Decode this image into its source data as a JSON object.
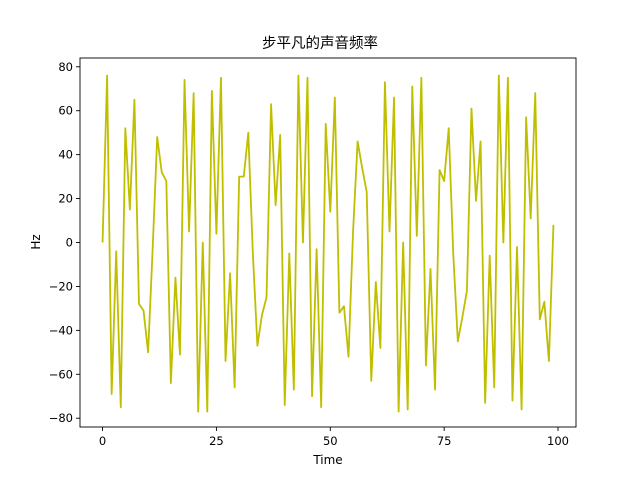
{
  "chart_data": {
    "type": "line",
    "title": "步平凡的声音频率",
    "xlabel": "Time",
    "ylabel": "Hz",
    "xlim": [
      -4.95,
      103.95
    ],
    "ylim": [
      -84,
      84
    ],
    "xticks": [
      0,
      25,
      50,
      75,
      100
    ],
    "yticks": [
      -80,
      -60,
      -40,
      -20,
      0,
      20,
      40,
      60,
      80
    ],
    "grid": false,
    "legend": "none",
    "colors": {
      "line": "#bfbf00",
      "axes": "#000000",
      "background": "#ffffff"
    },
    "series": [
      {
        "x": [
          0,
          1,
          2,
          3,
          4,
          5,
          6,
          7,
          8,
          9,
          10,
          11,
          12,
          13,
          14,
          15,
          16,
          17,
          18,
          19,
          20,
          21,
          22,
          23,
          24,
          25,
          26,
          27,
          28,
          29,
          30,
          31,
          32,
          33,
          34,
          35,
          36,
          37,
          38,
          39,
          40,
          41,
          42,
          43,
          44,
          45,
          46,
          47,
          48,
          49,
          50,
          51,
          52,
          53,
          54,
          55,
          56,
          57,
          58,
          59,
          60,
          61,
          62,
          63,
          64,
          65,
          66,
          67,
          68,
          69,
          70,
          71,
          72,
          73,
          74,
          75,
          76,
          77,
          78,
          79,
          80,
          81,
          82,
          83,
          84,
          85,
          86,
          87,
          88,
          89,
          90,
          91,
          92,
          93,
          94,
          95,
          96,
          97,
          98,
          99
        ],
        "values": [
          0,
          76,
          -69,
          -4,
          -75,
          52,
          15,
          65,
          -28,
          -31,
          -50,
          -3,
          48,
          32,
          28,
          -64,
          -16,
          -51,
          74,
          5,
          68,
          -77,
          0,
          -77,
          69,
          4,
          75,
          -54,
          -14,
          -66,
          30,
          30,
          50,
          -5,
          -47,
          -33,
          -25,
          63,
          17,
          49,
          -74,
          -5,
          -67,
          76,
          0,
          75,
          -70,
          -3,
          -75,
          54,
          14,
          66,
          -32,
          -29,
          -52,
          5,
          46,
          34,
          23,
          -63,
          -18,
          -48,
          73,
          5,
          66,
          -77,
          0,
          -76,
          71,
          3,
          75,
          -56,
          -12,
          -67,
          33,
          28,
          52,
          -5,
          -45,
          -34,
          -22,
          61,
          19,
          46,
          -73,
          -6,
          -66,
          76,
          0,
          75,
          -72,
          -2,
          -76,
          57,
          11,
          68,
          -35,
          -27,
          -54,
          8
        ]
      }
    ]
  }
}
